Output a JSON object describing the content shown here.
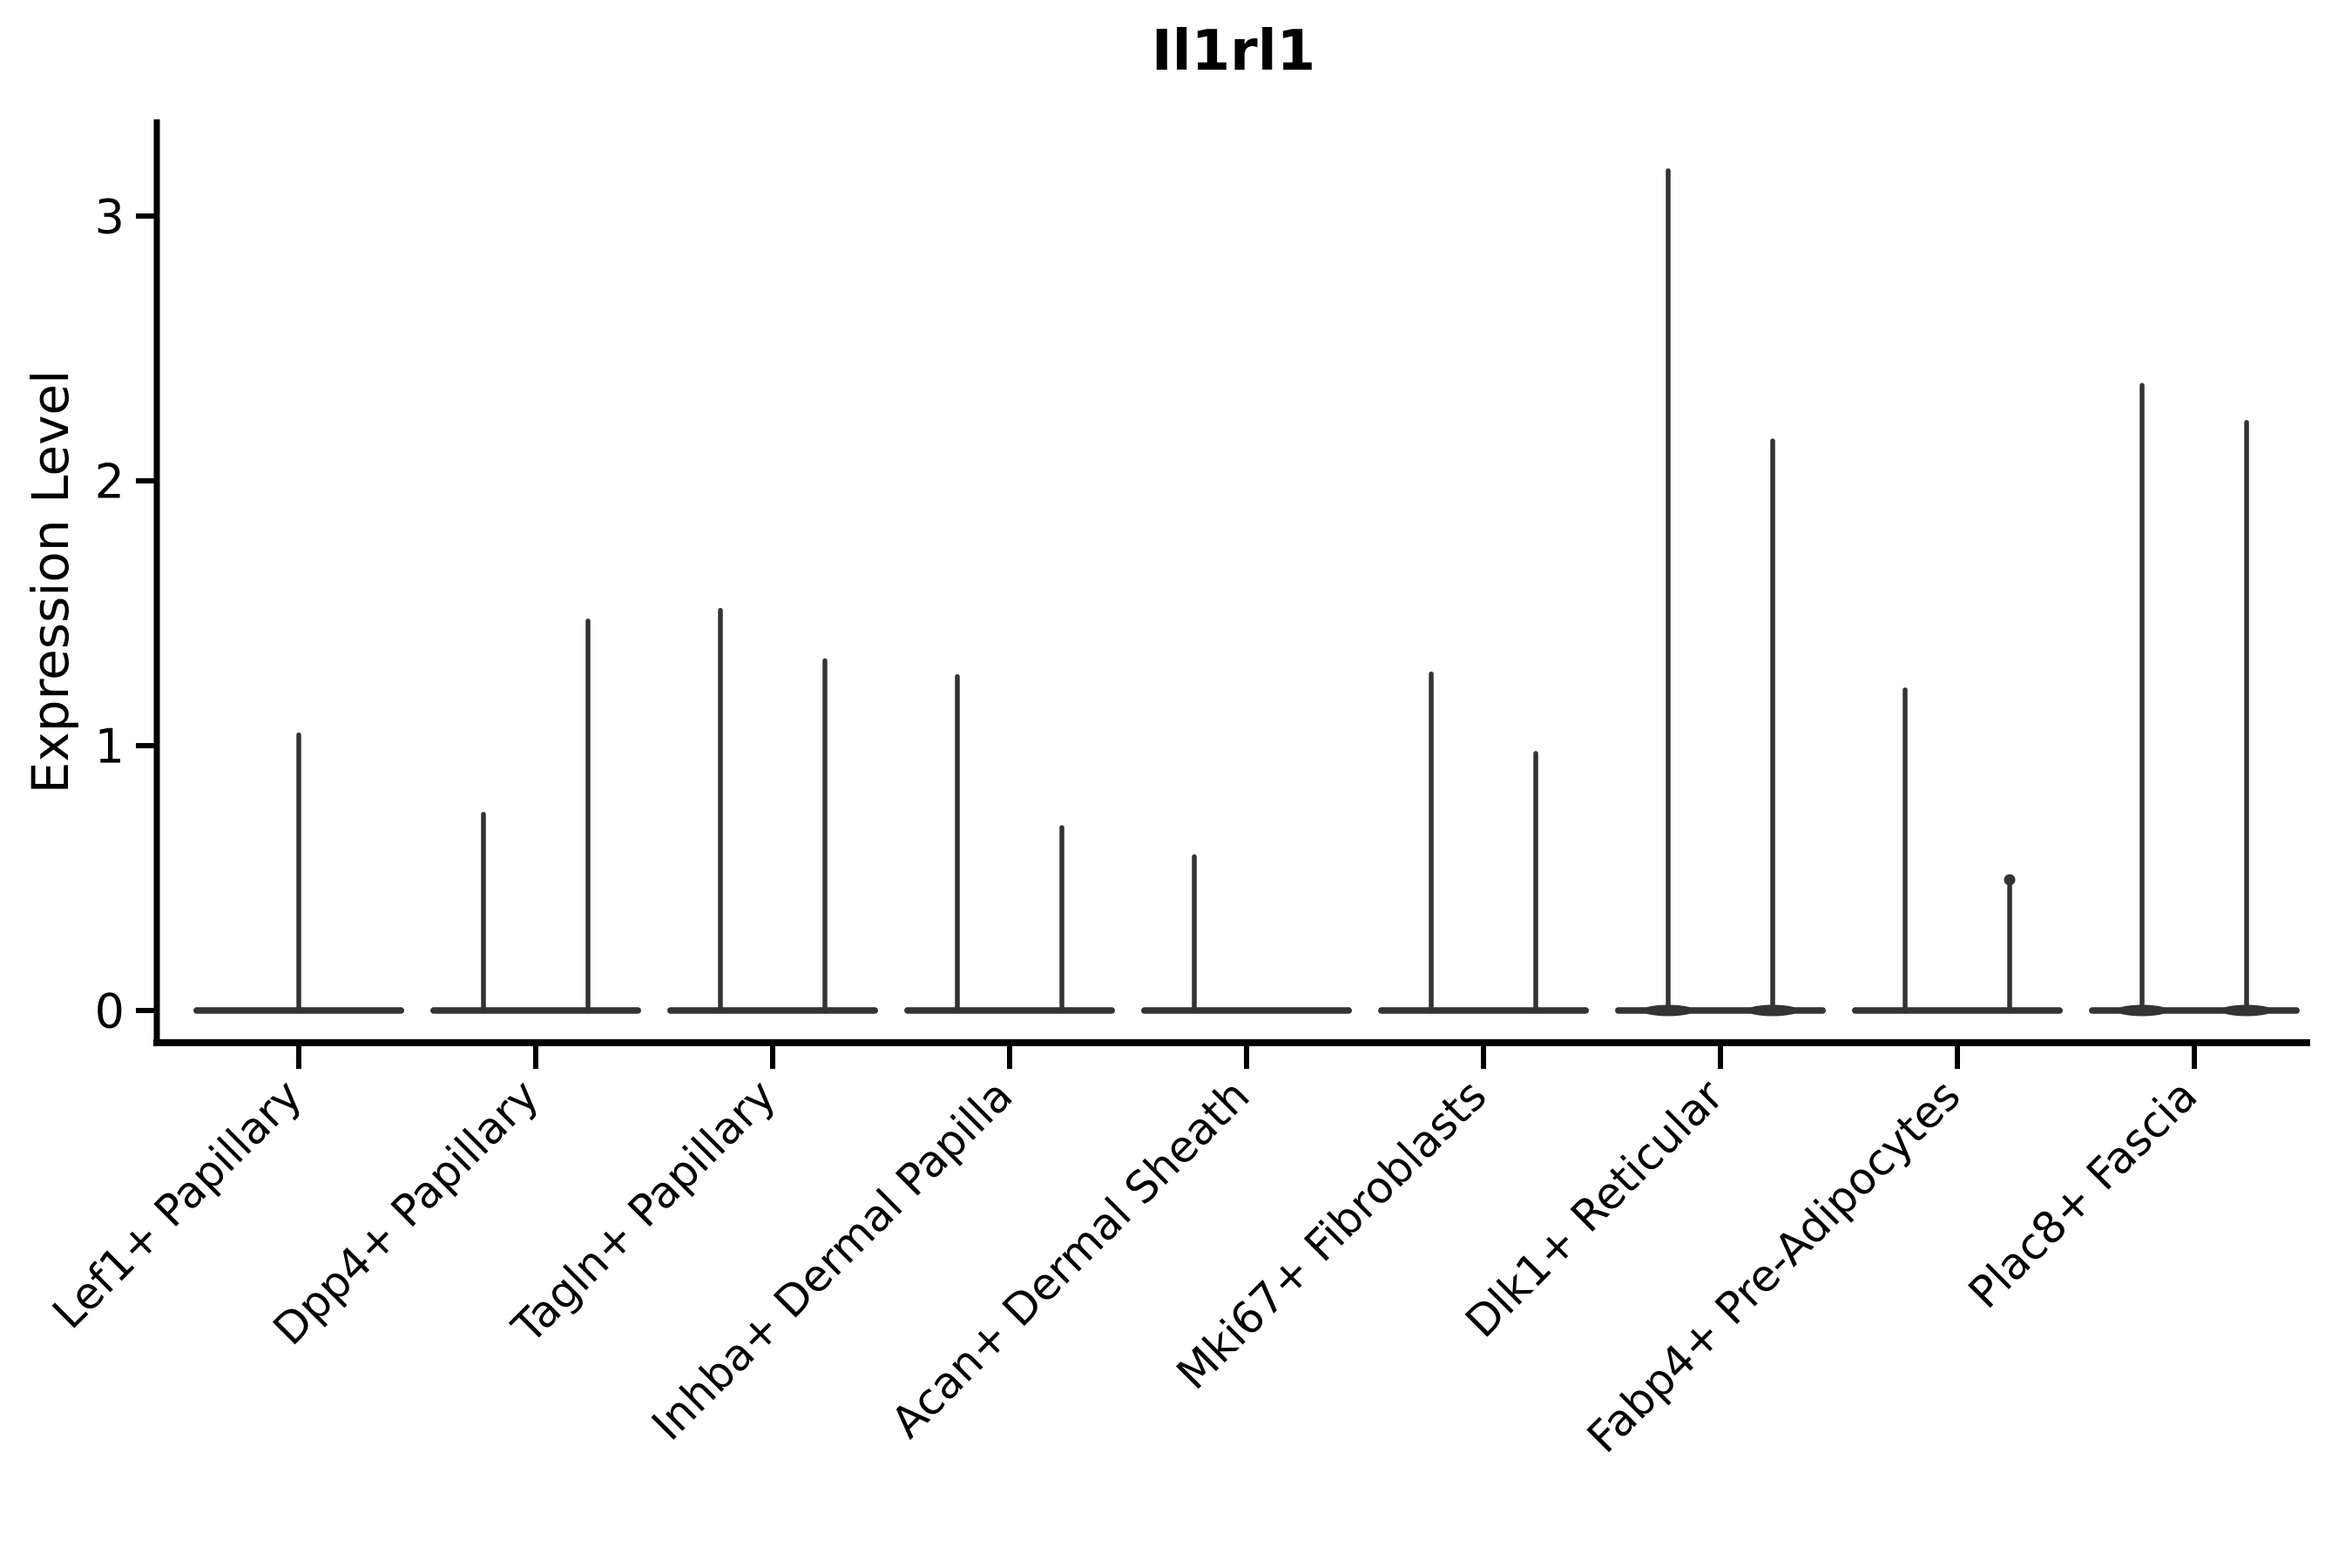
{
  "chart_data": {
    "type": "violin",
    "title": "Il1rl1",
    "ylabel": "Expression Level",
    "xlabel": "",
    "ylim": [
      -0.07,
      3.35
    ],
    "yticks": [
      0,
      1,
      2,
      3
    ],
    "grid": false,
    "legend": null,
    "baseline_value": 0,
    "colors": {
      "violin_stroke": "#333333",
      "axis": "#000000",
      "text": "#000000",
      "background": "#ffffff"
    },
    "categories": [
      "Lef1+ Papillary",
      "Dpp4+ Papillary",
      "Tagln+ Papillary",
      "Inhba+ Dermal Papilla",
      "Acan+ Dermal Sheath",
      "Mki67+ Fibroblasts",
      "Dlk1+ Reticular",
      "Fabp4+ Pre-Adipocytes",
      "Plac8+ Fascia"
    ],
    "groups": [
      {
        "category": "Lef1+ Papillary",
        "violins": [
          {
            "position": "center",
            "max_expression": 1.05
          }
        ]
      },
      {
        "category": "Dpp4+ Papillary",
        "violins": [
          {
            "position": "left",
            "max_expression": 0.75
          },
          {
            "position": "right",
            "max_expression": 1.48
          }
        ]
      },
      {
        "category": "Tagln+ Papillary",
        "violins": [
          {
            "position": "left",
            "max_expression": 1.52
          },
          {
            "position": "right",
            "max_expression": 1.33
          }
        ]
      },
      {
        "category": "Inhba+ Dermal Papilla",
        "violins": [
          {
            "position": "left",
            "max_expression": 1.27
          },
          {
            "position": "right",
            "max_expression": 0.7
          }
        ]
      },
      {
        "category": "Acan+ Dermal Sheath",
        "violins": [
          {
            "position": "left",
            "max_expression": 0.59
          },
          {
            "position": "right",
            "max_expression": 0
          }
        ]
      },
      {
        "category": "Mki67+ Fibroblasts",
        "violins": [
          {
            "position": "left",
            "max_expression": 1.28
          },
          {
            "position": "right",
            "max_expression": 0.98
          }
        ]
      },
      {
        "category": "Dlk1+ Reticular",
        "violins": [
          {
            "position": "left",
            "max_expression": 3.18
          },
          {
            "position": "right",
            "max_expression": 2.16
          }
        ]
      },
      {
        "category": "Fabp4+ Pre-Adipocytes",
        "violins": [
          {
            "position": "left",
            "max_expression": 1.22
          },
          {
            "position": "right",
            "max_expression": 0.51,
            "tip_knob": true
          }
        ]
      },
      {
        "category": "Plac8+ Fascia",
        "violins": [
          {
            "position": "left",
            "max_expression": 2.37
          },
          {
            "position": "right",
            "max_expression": 2.23
          }
        ]
      }
    ]
  }
}
